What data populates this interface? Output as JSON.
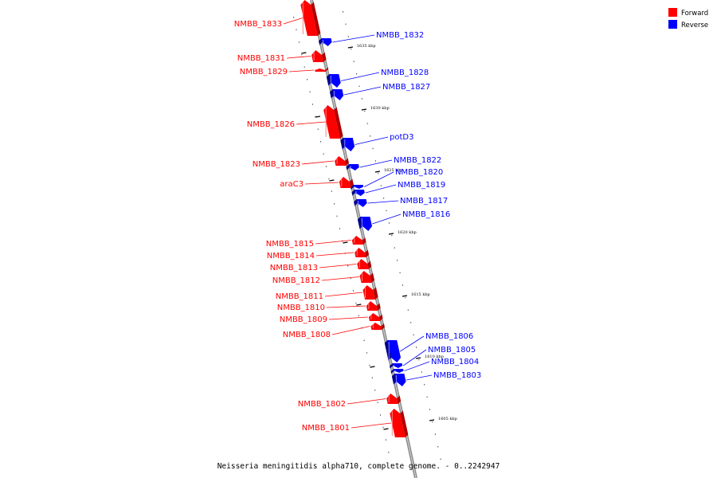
{
  "caption": "Neisseria meningitidis alpha710, complete genome. - 0..2242947",
  "legend": [
    {
      "label": "Forward",
      "color": "#ff0000"
    },
    {
      "label": "Reverse",
      "color": "#0000ff"
    }
  ],
  "colors": {
    "forward": "#ff0000",
    "reverse": "#0000ff",
    "backbone": "#888888"
  },
  "scale_ticks": [
    "1635 kbp",
    "1630 kbp",
    "1625 kbp",
    "1620 kbp",
    "1615 kbp",
    "1610 kbp",
    "1605 kbp"
  ],
  "forward_genes": [
    "NMBB_1833",
    "NMBB_1831",
    "NMBB_1829",
    "NMBB_1826",
    "NMBB_1823",
    "araC3",
    "NMBB_1815",
    "NMBB_1814",
    "NMBB_1813",
    "NMBB_1812",
    "NMBB_1811",
    "NMBB_1810",
    "NMBB_1809",
    "NMBB_1808",
    "NMBB_1802",
    "NMBB_1801"
  ],
  "reverse_genes": [
    "NMBB_1832",
    "NMBB_1828",
    "NMBB_1827",
    "potD3",
    "NMBB_1822",
    "NMBB_1820",
    "NMBB_1819",
    "NMBB_1817",
    "NMBB_1816",
    "NMBB_1806",
    "NMBB_1805",
    "NMBB_1804",
    "NMBB_1803"
  ]
}
